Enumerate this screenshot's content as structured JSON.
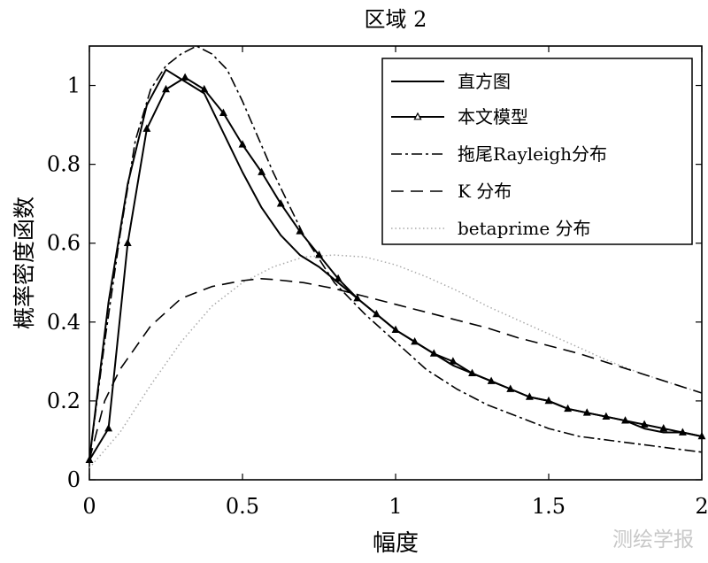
{
  "chart_data": {
    "type": "line",
    "title": "区域 2",
    "xlabel": "幅度",
    "ylabel": "概率密度函数",
    "xlim": [
      0,
      2
    ],
    "ylim": [
      0,
      1.1
    ],
    "xticks": [
      0,
      0.5,
      1,
      1.5,
      2
    ],
    "xtick_labels": [
      "0",
      "0.5",
      "1",
      "1.5",
      "2"
    ],
    "yticks": [
      0,
      0.2,
      0.4,
      0.6,
      0.8,
      1
    ],
    "ytick_labels": [
      "0",
      "0.2",
      "0.4",
      "0.6",
      "0.8",
      "1"
    ],
    "legend_position": "top-right",
    "series": [
      {
        "name": "直方图",
        "style": "solid",
        "x": [
          0,
          0.0625,
          0.125,
          0.1875,
          0.25,
          0.3125,
          0.375,
          0.4375,
          0.5,
          0.5625,
          0.625,
          0.6875,
          0.75,
          0.8125,
          0.875,
          0.9375,
          1.0,
          1.0625,
          1.125,
          1.1875,
          1.25,
          1.3125,
          1.375,
          1.4375,
          1.5,
          1.5625,
          1.625,
          1.6875,
          1.75,
          1.8125,
          1.875,
          1.9375,
          2.0
        ],
        "y": [
          0.05,
          0.45,
          0.75,
          0.95,
          1.04,
          1.01,
          0.98,
          0.88,
          0.78,
          0.69,
          0.62,
          0.57,
          0.54,
          0.5,
          0.46,
          0.42,
          0.38,
          0.35,
          0.32,
          0.29,
          0.27,
          0.25,
          0.23,
          0.21,
          0.2,
          0.18,
          0.17,
          0.16,
          0.15,
          0.13,
          0.12,
          0.12,
          0.11
        ]
      },
      {
        "name": "本文模型",
        "style": "solid-triangle",
        "x": [
          0,
          0.0625,
          0.125,
          0.1875,
          0.25,
          0.3125,
          0.375,
          0.4375,
          0.5,
          0.5625,
          0.625,
          0.6875,
          0.75,
          0.8125,
          0.875,
          0.9375,
          1.0,
          1.0625,
          1.125,
          1.1875,
          1.25,
          1.3125,
          1.375,
          1.4375,
          1.5,
          1.5625,
          1.625,
          1.6875,
          1.75,
          1.8125,
          1.875,
          1.9375,
          2.0
        ],
        "y": [
          0.05,
          0.13,
          0.6,
          0.89,
          0.99,
          1.02,
          0.99,
          0.93,
          0.85,
          0.78,
          0.7,
          0.63,
          0.57,
          0.51,
          0.46,
          0.42,
          0.38,
          0.35,
          0.32,
          0.3,
          0.27,
          0.25,
          0.23,
          0.21,
          0.2,
          0.18,
          0.17,
          0.16,
          0.15,
          0.14,
          0.13,
          0.12,
          0.11
        ]
      },
      {
        "name": "拖尾Rayleigh分布",
        "style": "dash-dot",
        "x": [
          0,
          0.05,
          0.1,
          0.15,
          0.2,
          0.25,
          0.3,
          0.35,
          0.4,
          0.45,
          0.5,
          0.6,
          0.7,
          0.8,
          0.9,
          1.0,
          1.1,
          1.2,
          1.3,
          1.4,
          1.5,
          1.6,
          1.7,
          1.8,
          1.9,
          2.0
        ],
        "y": [
          0.05,
          0.35,
          0.62,
          0.86,
          0.99,
          1.05,
          1.08,
          1.1,
          1.08,
          1.04,
          0.96,
          0.78,
          0.62,
          0.5,
          0.42,
          0.35,
          0.28,
          0.23,
          0.19,
          0.16,
          0.13,
          0.11,
          0.1,
          0.09,
          0.08,
          0.07
        ]
      },
      {
        "name": "K 分布",
        "style": "dashed",
        "x": [
          0,
          0.05,
          0.1,
          0.2,
          0.3,
          0.4,
          0.5,
          0.56,
          0.6,
          0.7,
          0.8,
          0.9,
          1.0,
          1.1,
          1.2,
          1.3,
          1.4,
          1.5,
          1.6,
          1.7,
          1.8,
          1.9,
          2.0
        ],
        "y": [
          0.05,
          0.2,
          0.28,
          0.39,
          0.46,
          0.49,
          0.505,
          0.51,
          0.508,
          0.5,
          0.485,
          0.465,
          0.445,
          0.425,
          0.405,
          0.385,
          0.36,
          0.34,
          0.32,
          0.295,
          0.27,
          0.245,
          0.22
        ]
      },
      {
        "name": "betaprime 分布",
        "style": "dotted",
        "x": [
          0,
          0.1,
          0.2,
          0.3,
          0.4,
          0.5,
          0.6,
          0.7,
          0.8,
          0.9,
          1.0,
          1.1,
          1.2,
          1.3,
          1.4,
          1.5,
          1.6,
          1.7,
          1.8,
          1.9,
          2.0
        ],
        "y": [
          0.03,
          0.12,
          0.24,
          0.35,
          0.44,
          0.5,
          0.54,
          0.565,
          0.57,
          0.565,
          0.545,
          0.515,
          0.48,
          0.44,
          0.405,
          0.37,
          0.335,
          0.3,
          0.27,
          0.245,
          0.22
        ]
      }
    ]
  },
  "watermark": "测绘学报"
}
